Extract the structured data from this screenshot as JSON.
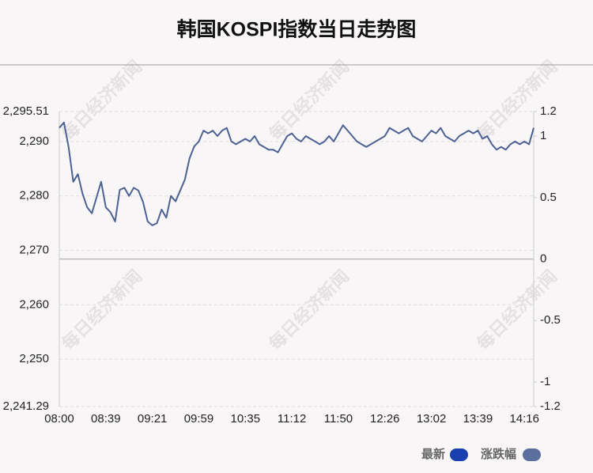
{
  "chart_data": {
    "type": "line",
    "title": "韩国KOSPI指数当日走势图",
    "watermark": "每日经济新闻",
    "categories": [
      "08:00",
      null,
      null,
      null,
      null,
      null,
      null,
      null,
      null,
      null,
      "08:39",
      null,
      null,
      null,
      null,
      null,
      null,
      null,
      null,
      null,
      "09:21",
      null,
      null,
      null,
      null,
      null,
      null,
      null,
      null,
      null,
      "09:59",
      null,
      null,
      null,
      null,
      null,
      null,
      null,
      null,
      null,
      "10:35",
      null,
      null,
      null,
      null,
      null,
      null,
      null,
      null,
      null,
      "11:12",
      null,
      null,
      null,
      null,
      null,
      null,
      null,
      null,
      null,
      "11:50",
      null,
      null,
      null,
      null,
      null,
      null,
      null,
      null,
      null,
      "12:26",
      null,
      null,
      null,
      null,
      null,
      null,
      null,
      null,
      null,
      "13:02",
      null,
      null,
      null,
      null,
      null,
      null,
      null,
      null,
      null,
      "13:39",
      null,
      null,
      null,
      null,
      null,
      null,
      null,
      null,
      null,
      "14:16",
      null,
      null
    ],
    "series": [
      {
        "color": "#4d6193",
        "values": [
          2292.5,
          2293.5,
          2289,
          2282.6,
          2284,
          2280.4,
          2277.9,
          2276.8,
          2279.7,
          2282.6,
          2277.9,
          2277,
          2275.3,
          2281.1,
          2281.5,
          2280,
          2281.5,
          2281,
          2278.9,
          2275.3,
          2274.6,
          2275,
          2277.5,
          2276,
          2280,
          2279,
          2281,
          2283,
          2286.9,
          2289.1,
          2290,
          2292,
          2291.5,
          2292,
          2291,
          2292,
          2292.5,
          2290,
          2289.5,
          2290,
          2290.5,
          2290,
          2291,
          2289.5,
          2289,
          2288.5,
          2288.5,
          2288,
          2289.5,
          2291,
          2291.5,
          2290.5,
          2290,
          2291,
          2290.5,
          2290,
          2289.5,
          2290,
          2291,
          2290,
          2291.5,
          2293,
          2292,
          2291,
          2290,
          2289.5,
          2289,
          2289.5,
          2290,
          2290.5,
          2291,
          2292.5,
          2292,
          2291.5,
          2292,
          2292.5,
          2291,
          2290.5,
          2290,
          2291,
          2292,
          2291.5,
          2292.5,
          2291,
          2290.5,
          2290,
          2291,
          2291.5,
          2292,
          2291.5,
          2292,
          2290.5,
          2291,
          2289.5,
          2288.5,
          2289,
          2288.5,
          2289.5,
          2290,
          2289.5,
          2290,
          2289.5,
          2292.5
        ]
      }
    ],
    "legend": [
      {
        "name": "最新",
        "color": "#1a3fae"
      },
      {
        "name": "涨跌幅",
        "color": "#5b6f9f"
      }
    ],
    "ylim": [
      2241.29,
      2295.51
    ],
    "yticks": [
      {
        "value": 2241.29,
        "label": "2,241.29"
      },
      {
        "value": 2250,
        "label": "2,250"
      },
      {
        "value": 2260,
        "label": "2,260"
      },
      {
        "value": 2270,
        "label": "2,270"
      },
      {
        "value": 2280,
        "label": "2,280"
      },
      {
        "value": 2290,
        "label": "2,290"
      },
      {
        "value": 2295.51,
        "label": "2,295.51"
      }
    ],
    "y2lim": [
      -1.2,
      1.2
    ],
    "y2ticks": [
      -1.2,
      -1,
      -0.5,
      0,
      0.5,
      1,
      1.2
    ],
    "grid": true
  }
}
